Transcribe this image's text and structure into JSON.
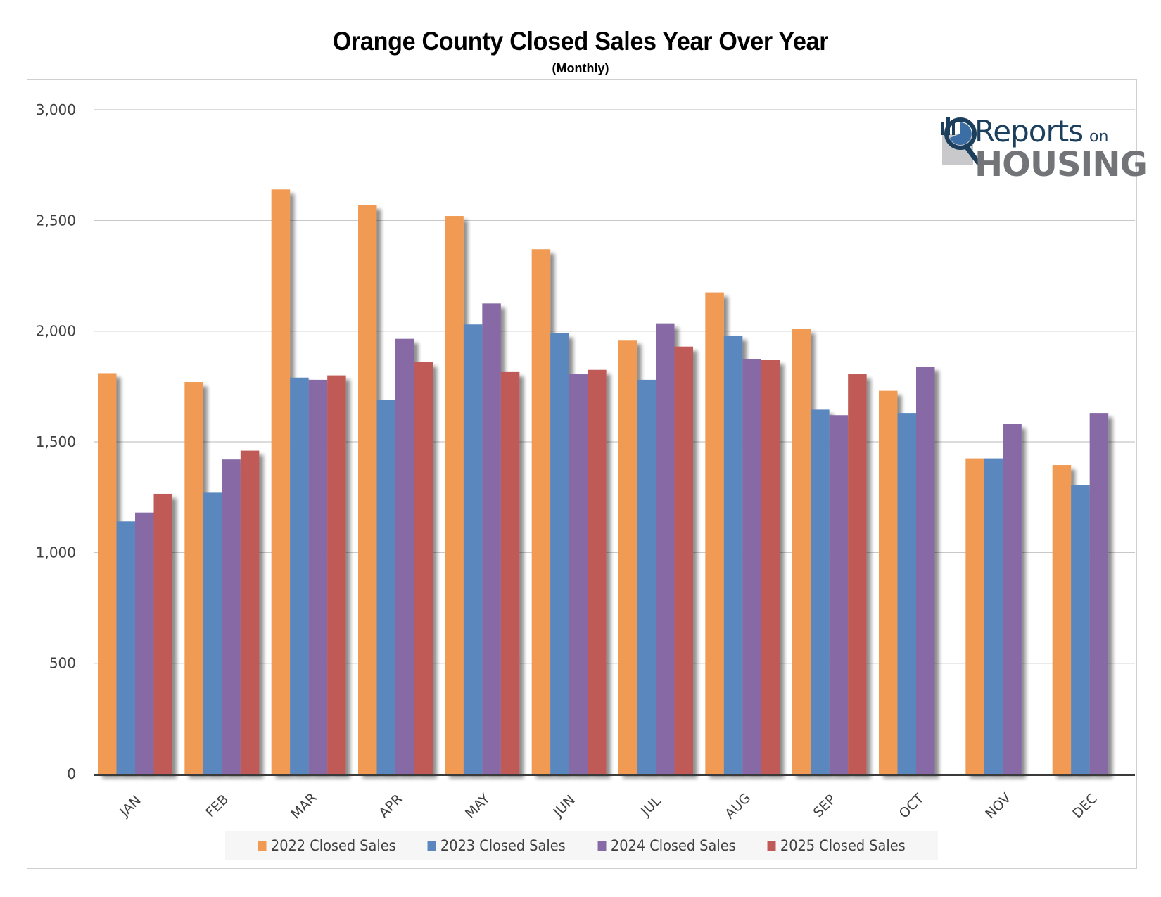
{
  "chart_data": {
    "type": "bar",
    "title": "Orange County Closed Sales Year Over Year",
    "subtitle": "(Monthly)",
    "xlabel": "",
    "ylabel": "",
    "ylim": [
      0,
      3000
    ],
    "yticks": [
      0,
      500,
      1000,
      1500,
      2000,
      2500,
      3000
    ],
    "ytick_labels": [
      "0",
      "500",
      "1,000",
      "1,500",
      "2,000",
      "2,500",
      "3,000"
    ],
    "grid": true,
    "legend_position": "bottom",
    "categories": [
      "JAN",
      "FEB",
      "MAR",
      "APR",
      "MAY",
      "JUN",
      "JUL",
      "AUG",
      "SEP",
      "OCT",
      "NOV",
      "DEC"
    ],
    "series": [
      {
        "name": "2022 Closed Sales",
        "color": "#f09a52",
        "values": [
          1810,
          1770,
          2640,
          2570,
          2520,
          2370,
          1960,
          2175,
          2010,
          1730,
          1425,
          1395
        ]
      },
      {
        "name": "2023 Closed Sales",
        "color": "#5a87be",
        "values": [
          1140,
          1270,
          1790,
          1690,
          2030,
          1990,
          1780,
          1980,
          1645,
          1630,
          1425,
          1305
        ]
      },
      {
        "name": "2024 Closed Sales",
        "color": "#8769a6",
        "values": [
          1180,
          1420,
          1780,
          1965,
          2125,
          1805,
          2035,
          1875,
          1620,
          1840,
          1580,
          1630
        ]
      },
      {
        "name": "2025 Closed Sales",
        "color": "#c05a57",
        "values": [
          1265,
          1460,
          1800,
          1860,
          1815,
          1825,
          1930,
          1870,
          1805,
          null,
          null,
          null
        ]
      }
    ]
  },
  "logo": {
    "line1": "Reports",
    "line1_suffix": "on",
    "line2": "HOUSING"
  }
}
